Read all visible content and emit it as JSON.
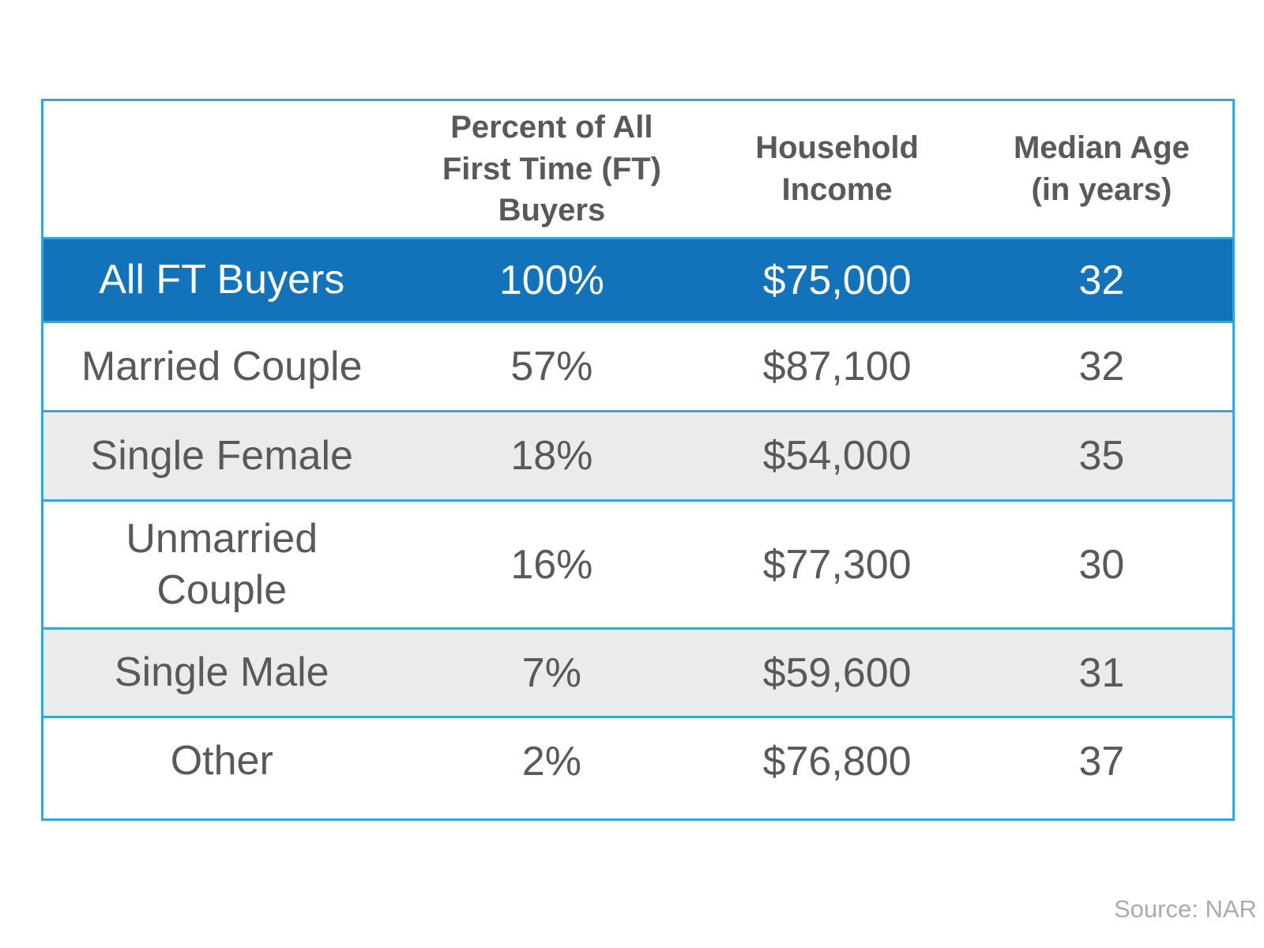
{
  "chart_data": {
    "type": "table",
    "title": "",
    "columns": [
      "",
      "Percent of All First Time (FT) Buyers",
      "Household Income",
      "Median Age (in years)"
    ],
    "rows": [
      {
        "label": "All FT Buyers",
        "percent": "100%",
        "income": "$75,000",
        "age": "32",
        "highlighted": true
      },
      {
        "label": "Married Couple",
        "percent": "57%",
        "income": "$87,100",
        "age": "32",
        "highlighted": false
      },
      {
        "label": "Single Female",
        "percent": "18%",
        "income": "$54,000",
        "age": "35",
        "highlighted": false
      },
      {
        "label": "Unmarried Couple",
        "percent": "16%",
        "income": "$77,300",
        "age": "30",
        "highlighted": false
      },
      {
        "label": "Single Male",
        "percent": "7%",
        "income": "$59,600",
        "age": "31",
        "highlighted": false
      },
      {
        "label": "Other",
        "percent": "2%",
        "income": "$76,800",
        "age": "37",
        "highlighted": false
      }
    ],
    "layout_hints": {
      "zebra_striping": true,
      "highlight_row_index": 0,
      "grid": "horizontal-lines-only"
    }
  },
  "source": {
    "text": "Source: NAR"
  },
  "colors": {
    "highlight": "#1273bb",
    "border": "#38a5d6",
    "zebra": "#ebebeb",
    "text": "#595959",
    "muted": "#ababab"
  }
}
